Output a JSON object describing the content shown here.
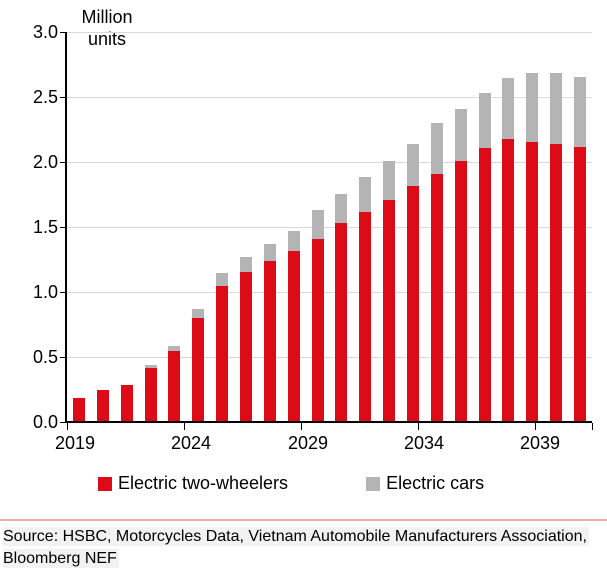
{
  "title": {
    "line1": "Million",
    "line2": "units"
  },
  "legend": [
    {
      "label": "Electric two-wheelers",
      "color": "#dd0a18"
    },
    {
      "label": "Electric cars",
      "color": "#b4b4b4"
    }
  ],
  "source": {
    "line1": "Source: HSBC, Motorcycles Data, Vietnam Automobile Manufacturers Association,",
    "line2": "Bloomberg NEF"
  },
  "colors": {
    "two_wheelers_red": "#dd0a18",
    "cars_gray": "#b4b4b4",
    "gridline": "#d9d9d9",
    "axis": "#000000",
    "separator": "#eab0ab",
    "source_highlight": "#f2f2f2"
  },
  "chart_data": {
    "type": "bar",
    "stacked": true,
    "title": "Million units",
    "xlabel": "",
    "ylabel": "Million units",
    "ylim": [
      0,
      3.0
    ],
    "ytick_step": 0.5,
    "ytick_labels": [
      "0.0",
      "0.5",
      "1.0",
      "1.5",
      "2.0",
      "2.5",
      "3.0"
    ],
    "xtick_labels": [
      "2019",
      "2024",
      "2029",
      "2034",
      "2039"
    ],
    "grid": "horizontal",
    "legend_position": "bottom",
    "categories": [
      2019,
      2020,
      2021,
      2022,
      2023,
      2024,
      2025,
      2026,
      2027,
      2028,
      2029,
      2030,
      2031,
      2032,
      2033,
      2034,
      2035,
      2036,
      2037,
      2038,
      2039,
      2040
    ],
    "series": [
      {
        "name": "Electric two-wheelers",
        "color": "#dd0a18",
        "values": [
          0.18,
          0.24,
          0.28,
          0.41,
          0.54,
          0.79,
          1.04,
          1.15,
          1.23,
          1.31,
          1.4,
          1.52,
          1.61,
          1.7,
          1.81,
          1.9,
          2.0,
          2.1,
          2.17,
          2.15,
          2.13,
          2.11
        ]
      },
      {
        "name": "Electric cars",
        "color": "#b4b4b4",
        "values": [
          0.0,
          0.0,
          0.0,
          0.02,
          0.04,
          0.07,
          0.1,
          0.11,
          0.13,
          0.15,
          0.22,
          0.23,
          0.27,
          0.3,
          0.32,
          0.39,
          0.4,
          0.42,
          0.47,
          0.53,
          0.55,
          0.54
        ]
      }
    ]
  }
}
